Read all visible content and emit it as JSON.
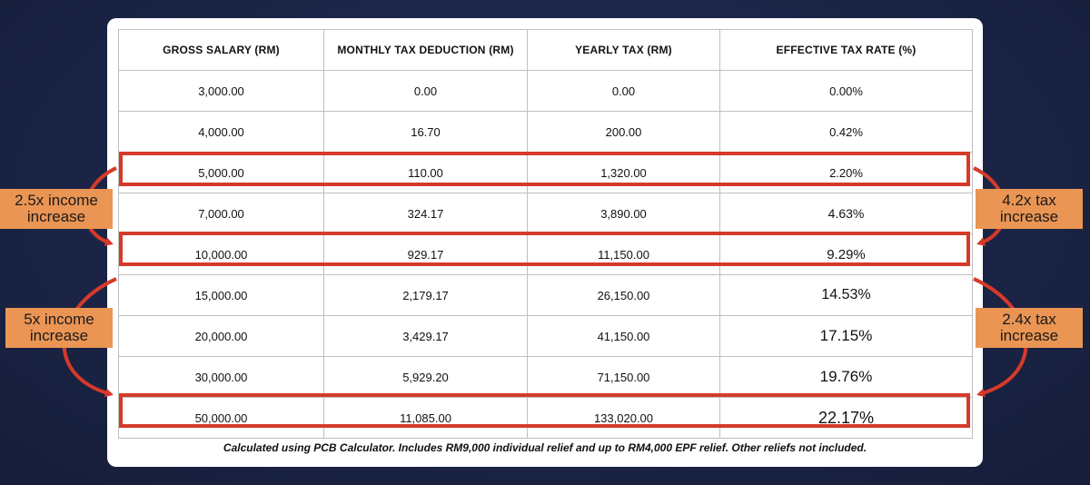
{
  "table": {
    "headers": [
      "GROSS SALARY (RM)",
      "MONTHLY TAX DEDUCTION (RM)",
      "YEARLY TAX (RM)",
      "EFFECTIVE TAX RATE (%)"
    ],
    "rows": [
      [
        "3,000.00",
        "0.00",
        "0.00",
        "0.00%"
      ],
      [
        "4,000.00",
        "16.70",
        "200.00",
        "0.42%"
      ],
      [
        "5,000.00",
        "110.00",
        "1,320.00",
        "2.20%"
      ],
      [
        "7,000.00",
        "324.17",
        "3,890.00",
        "4.63%"
      ],
      [
        "10,000.00",
        "929.17",
        "11,150.00",
        "9.29%"
      ],
      [
        "15,000.00",
        "2,179.17",
        "26,150.00",
        "14.53%"
      ],
      [
        "20,000.00",
        "3,429.17",
        "41,150.00",
        "17.15%"
      ],
      [
        "30,000.00",
        "5,929.20",
        "71,150.00",
        "19.76%"
      ],
      [
        "50,000.00",
        "11,085.00",
        "133,020.00",
        "22.17%"
      ]
    ],
    "highlighted_salaries": [
      "5,000.00",
      "10,000.00",
      "50,000.00"
    ]
  },
  "footnote": "Calculated using PCB Calculator. Includes RM9,000 individual relief and up to RM4,000 EPF relief. Other reliefs not included.",
  "annotations": {
    "left_top": {
      "line1": "2.5x income",
      "line2": "increase"
    },
    "left_bottom": {
      "line1": "5x income",
      "line2": "increase"
    },
    "right_top": {
      "line1": "4.2x tax",
      "line2": "increase"
    },
    "right_bottom": {
      "line1": "2.4x tax",
      "line2": "increase"
    }
  },
  "colors": {
    "background": "#1c2547",
    "highlight": "#d53a2a",
    "label": "#ea9554"
  }
}
